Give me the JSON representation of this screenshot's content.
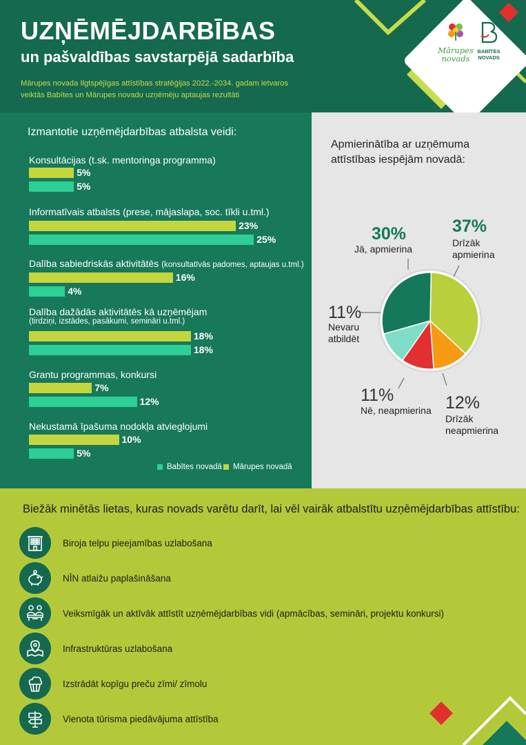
{
  "header": {
    "title": "UZŅĒMĒJDARBĪBAS",
    "subtitle": "un pašvaldības savstarpējā sadarbība",
    "intro_line1": "Mārupes novada Ilgtspējīgas attīstības stratēģijas 2022.-2034. gadam ietvaros",
    "intro_line2": "veiktās Babītes un Mārupes novadu uzņēmēju aptaujas rezultāti",
    "logo_marupes_line1": "Mārupes",
    "logo_marupes_line2": "novads",
    "logo_babites_line1": "BABĪTES",
    "logo_babites_line2": "NOVADS"
  },
  "chart_data": [
    {
      "type": "bar",
      "orientation": "horizontal",
      "title": "Izmantotie uzņēmējdarbības atbalsta veidi:",
      "categories": [
        "Konsultācijas (t.sk. mentoringa programma)",
        "Informatīvais atbalsts (prese, mājaslapa, soc. tīkli u.tml.)",
        "Dalība sabiedriskās aktivitātēs",
        "Dalība dažādās aktivitātēs kā uzņēmējam",
        "Grantu programmas, konkursi",
        "Nekustamā īpašuma nodokļa atvieglojumi"
      ],
      "category_notes": [
        "",
        "",
        "(konsultatīvās padomes, aptaujas u.tml.)",
        "(tirdziņi, izstādes, pasākumi, semināri u.tml.)",
        "",
        ""
      ],
      "series": [
        {
          "name": "Mārupes novadā",
          "color": "#c5d63d",
          "values": [
            5,
            23,
            16,
            18,
            7,
            10
          ]
        },
        {
          "name": "Babītes novadā",
          "color": "#2dcf96",
          "values": [
            5,
            25,
            4,
            18,
            12,
            5
          ]
        }
      ],
      "unit": "%",
      "legend": "bottom-right",
      "legend_order": [
        "Babītes novadā",
        "Mārupes novadā"
      ]
    },
    {
      "type": "pie",
      "title": "Apmierinātība ar uzņēmuma attīstības iespējām novadā:",
      "slices": [
        {
          "label": "Jā, apmierina",
          "value": 30,
          "color": "#15785a"
        },
        {
          "label": "Drīzāk apmierina",
          "value": 37,
          "color": "#b9cf3c"
        },
        {
          "label": "Drīzāk neapmierina",
          "value": 12,
          "color": "#f59a12"
        },
        {
          "label": "Nē, neapmierina",
          "value": 11,
          "color": "#e0302f"
        },
        {
          "label": "Nevaru atbildēt",
          "value": 11,
          "color": "#7fdcc6"
        }
      ],
      "unit": "%"
    }
  ],
  "pie_labels": {
    "ja_pct": "30%",
    "ja_label": "Jā, apmierina",
    "drizak_apm_pct": "37%",
    "drizak_apm_l1": "Drīzāk",
    "drizak_apm_l2": "apmierina",
    "nevaru_pct": "11%",
    "nevaru_l1": "Nevaru",
    "nevaru_l2": "atbildēt",
    "ne_pct": "11%",
    "ne_label": "Nē, neapmierina",
    "drizak_neapm_pct": "12%",
    "drizak_neapm_l1": "Drīzāk",
    "drizak_neapm_l2": "neapmierina"
  },
  "bottom": {
    "title": "Biežāk minētās lietas, kuras novads varētu darīt, lai vēl vairāk atbalstītu uzņēmējdarbības attīstību:",
    "items": [
      {
        "icon": "office-building-icon",
        "text": "Biroja telpu pieejamības uzlabošana"
      },
      {
        "icon": "piggy-bank-icon",
        "text": "NĪN atlaižu paplašināšana"
      },
      {
        "icon": "people-seminar-icon",
        "text": "Veiksmīgāk un aktīvāk attīstīt uzņēmējdarbības vidi (apmācības, semināri, projektu konkursi)"
      },
      {
        "icon": "map-pin-icon",
        "text": "Infrastruktūras uzlabošana"
      },
      {
        "icon": "cupcake-icon",
        "text": "Izstrādāt kopīgu preču zīmi/ zīmolu"
      },
      {
        "icon": "signpost-icon",
        "text": "Vienota tūrisma piedāvājuma attīstība"
      }
    ]
  }
}
